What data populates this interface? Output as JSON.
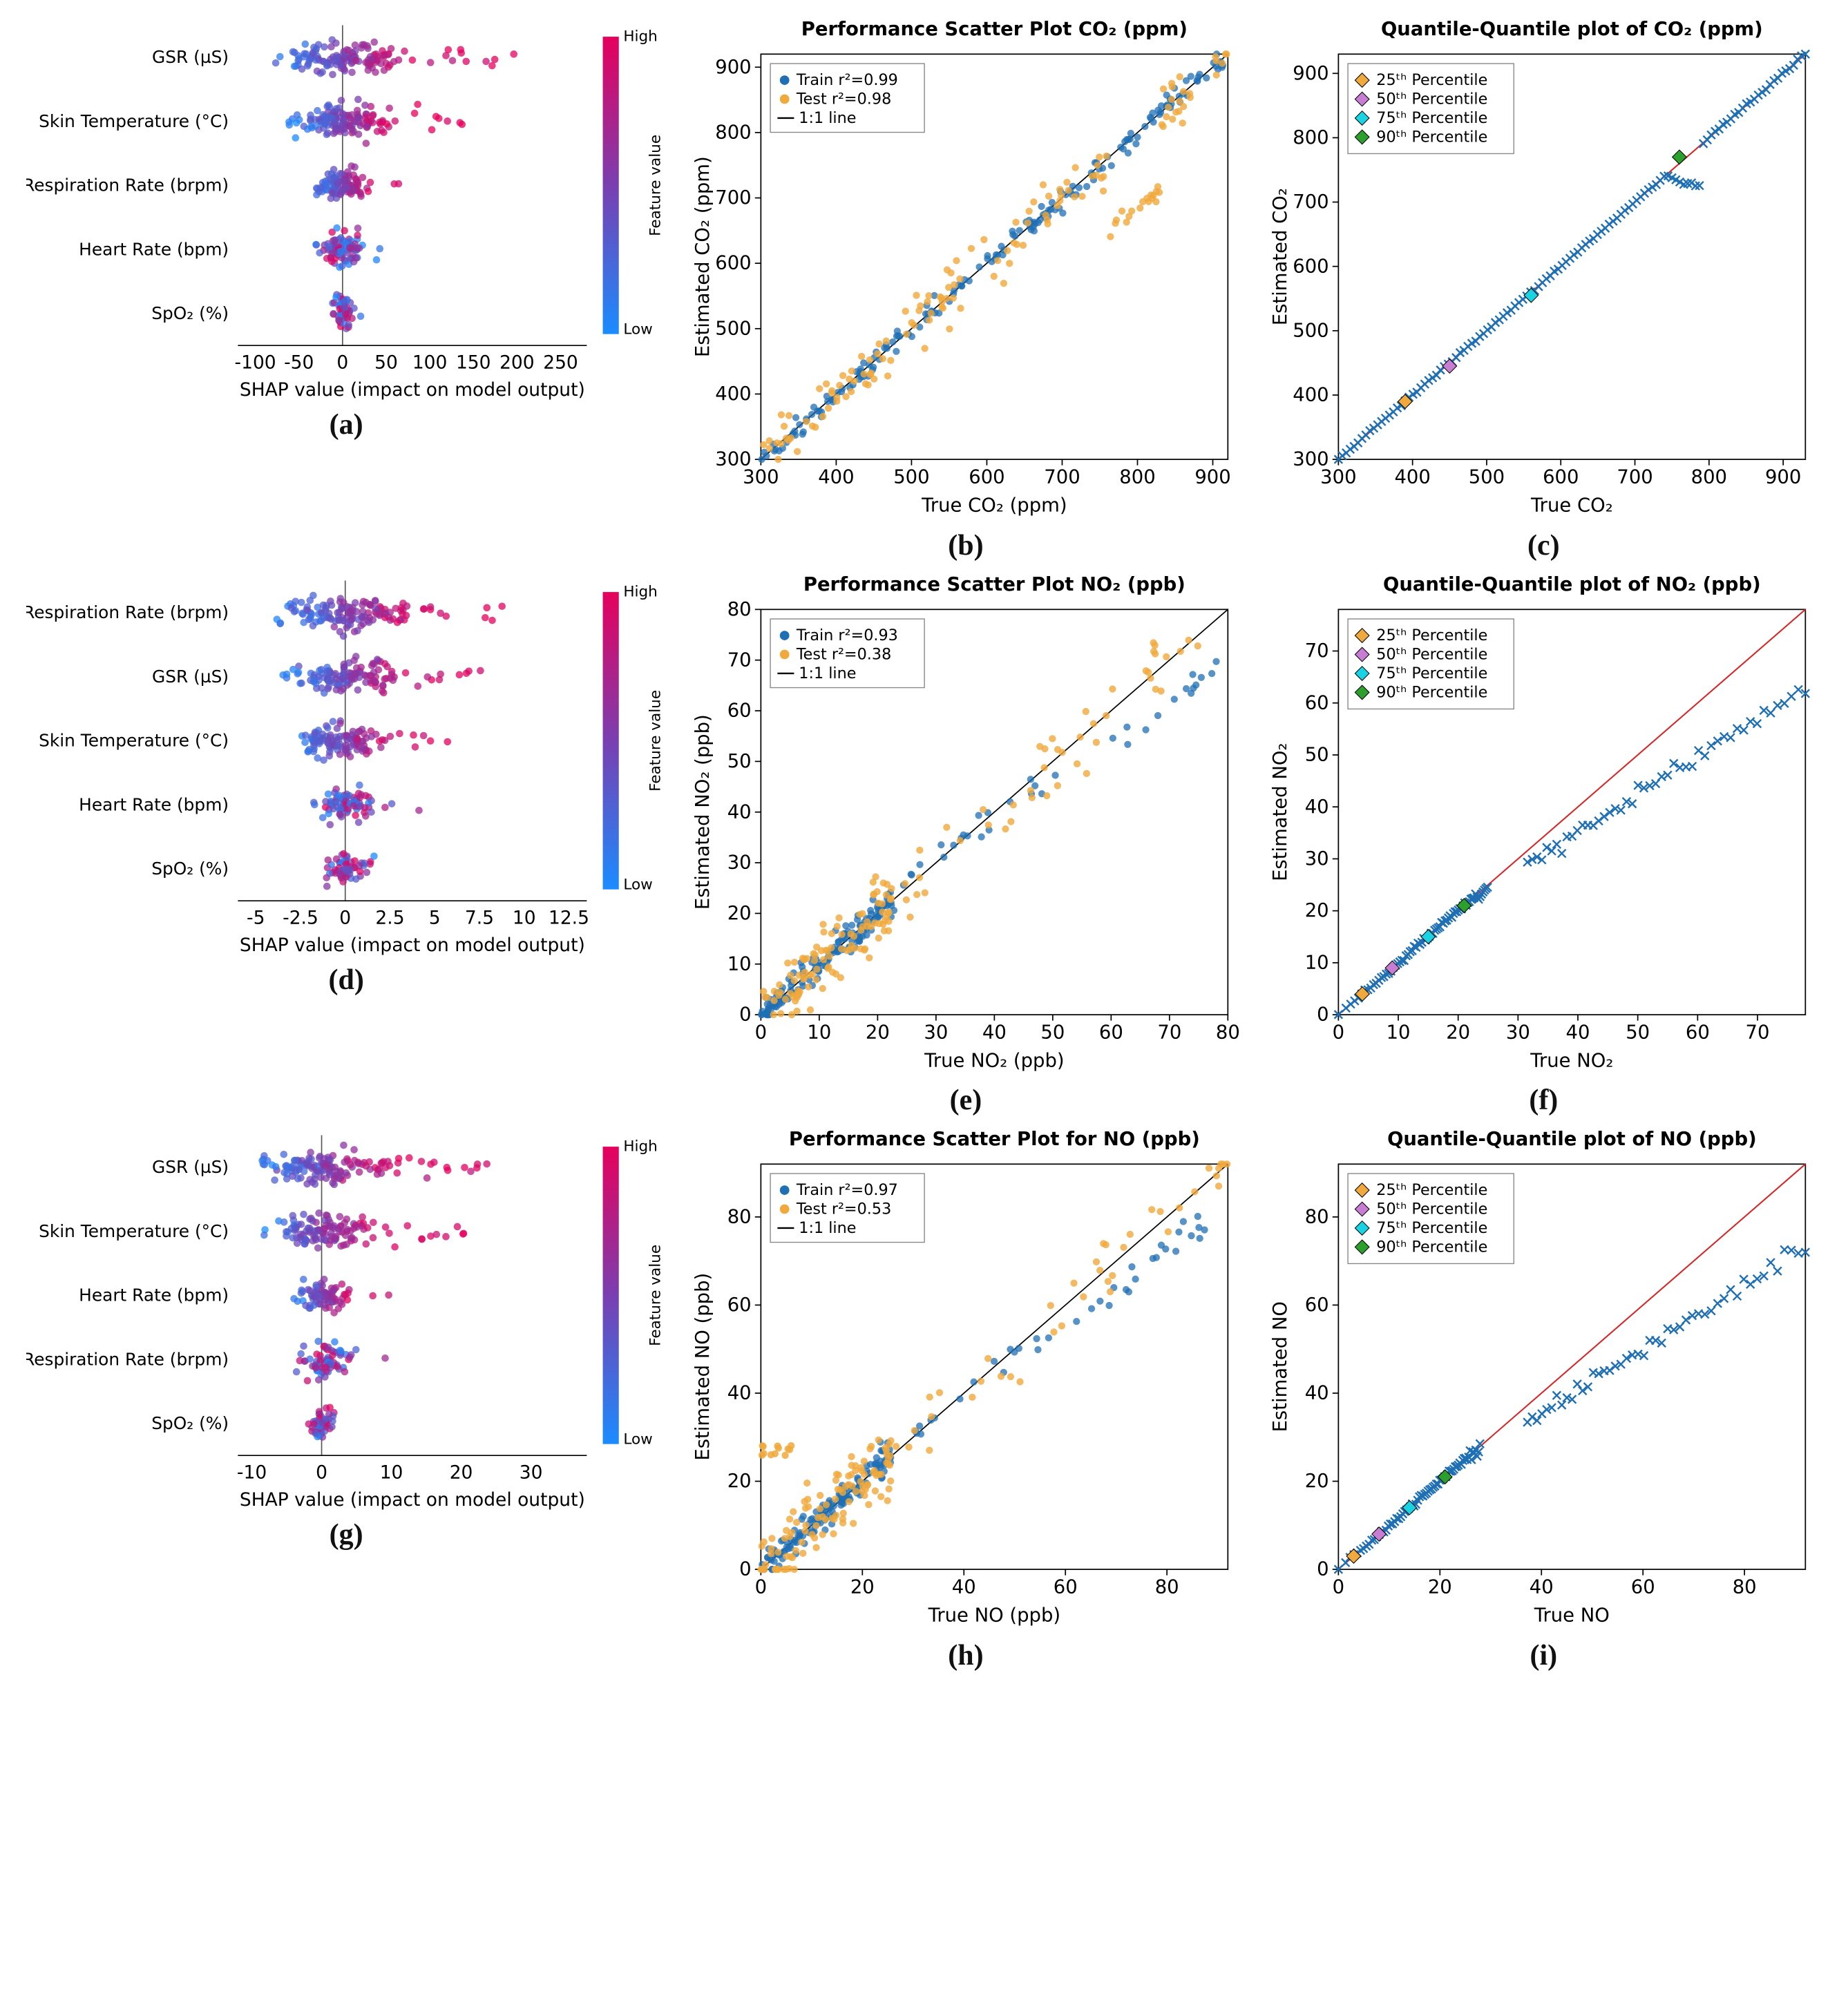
{
  "palette": {
    "shap_high": "#e6005c",
    "shap_mid": "#7a3fb0",
    "shap_low": "#1a8cff",
    "train": "#1f6fb4",
    "test": "#f0a93c",
    "oneone": "#000000",
    "refline": "#d62728",
    "qq_x": "#1f6fb4",
    "p25": "#f0a93c",
    "p50": "#c77dd1",
    "p75": "#19d3e3",
    "p90": "#2ca02c",
    "axis": "#000000",
    "grid": "#aaaaaa"
  },
  "fonts": {
    "title_fontsize": 16,
    "title_weight": "bold",
    "axis_label_fontsize": 16,
    "tick_fontsize": 14,
    "legend_fontsize": 13,
    "panel_label_fontsize": 42
  },
  "shap_common": {
    "xlabel": "SHAP value (impact on model output)",
    "colorbar_label": "Feature value",
    "colorbar_high": "High",
    "colorbar_low": "Low"
  },
  "rows": [
    {
      "letters": [
        "(a)",
        "(b)",
        "(c)"
      ],
      "shap": {
        "features": [
          "GSR (µS)",
          "Skin Temperature (°C)",
          "Respiration Rate (brpm)",
          "Heart Rate (bpm)",
          "SpO₂ (%)"
        ],
        "xlim": [
          -120,
          280
        ],
        "xticks": [
          -100,
          -50,
          0,
          50,
          100,
          150,
          200,
          250
        ],
        "spread": [
          1.0,
          0.7,
          0.4,
          0.35,
          0.18
        ],
        "density": [
          1.0,
          1.0,
          0.7,
          0.6,
          0.4
        ]
      },
      "scatter": {
        "title_prefix": "Performance Scatter Plot ",
        "gas": "CO₂",
        "unit": "(ppm)",
        "xlabel": "True CO₂ (ppm)",
        "ylabel": "Estimated CO₂ (ppm)",
        "xlim": [
          300,
          920
        ],
        "ylim": [
          300,
          920
        ],
        "xticks": [
          300,
          400,
          500,
          600,
          700,
          800,
          900
        ],
        "yticks": [
          300,
          400,
          500,
          600,
          700,
          800,
          900
        ],
        "legend": [
          "Train r²=0.99",
          "Test r²=0.98",
          "1:1 line"
        ],
        "noise_train": 18,
        "noise_test": 45,
        "test_dip": {
          "enabled": true,
          "start": 760,
          "end": 830,
          "drop": 120
        }
      },
      "qq": {
        "title_prefix": "Quantile-Quantile plot of ",
        "gas": "CO₂",
        "unit": "(ppm)",
        "xlabel": "True CO₂",
        "ylabel": "Estimated CO₂",
        "xlim": [
          300,
          930
        ],
        "ylim": [
          300,
          930
        ],
        "xticks": [
          300,
          400,
          500,
          600,
          700,
          800,
          900
        ],
        "yticks": [
          300,
          400,
          500,
          600,
          700,
          800,
          900
        ],
        "legend": [
          "25ᵗʰ Percentile",
          "50ᵗʰ Percentile",
          "75ᵗʰ Percentile",
          "90ᵗʰ Percentile"
        ],
        "percentiles": {
          "p25": [
            390,
            390
          ],
          "p50": [
            450,
            445
          ],
          "p75": [
            560,
            555
          ],
          "p90": [
            760,
            770
          ]
        },
        "marker": "x",
        "curve": "co2"
      }
    },
    {
      "letters": [
        "(d)",
        "(e)",
        "(f)"
      ],
      "shap": {
        "features": [
          "Respiration Rate (brpm)",
          "GSR (µS)",
          "Skin Temperature (°C)",
          "Heart Rate (bpm)",
          "SpO₂ (%)"
        ],
        "xlim": [
          -6,
          13.5
        ],
        "xticks": [
          -5.0,
          -2.5,
          0.0,
          2.5,
          5.0,
          7.5,
          10.0,
          12.5
        ],
        "spread": [
          1.0,
          0.85,
          0.75,
          0.45,
          0.35
        ],
        "density": [
          1.0,
          0.9,
          0.85,
          0.55,
          0.4
        ]
      },
      "scatter": {
        "title_prefix": "Performance Scatter Plot ",
        "gas": "NO₂",
        "unit": "(ppb)",
        "xlabel": "True NO₂ (ppb)",
        "ylabel": "Estimated NO₂ (ppb)",
        "xlim": [
          0,
          80
        ],
        "ylim": [
          0,
          80
        ],
        "xticks": [
          0,
          10,
          20,
          30,
          40,
          50,
          60,
          70,
          80
        ],
        "yticks": [
          0,
          10,
          20,
          30,
          40,
          50,
          60,
          70,
          80
        ],
        "legend": [
          "Train r²=0.93",
          "Test r²=0.38",
          "1:1 line"
        ],
        "noise_train": 3,
        "noise_test": 8,
        "concentration": "low",
        "train_tail": {
          "slope": 0.78,
          "start": 35
        }
      },
      "qq": {
        "title_prefix": "Quantile-Quantile plot of ",
        "gas": "NO₂",
        "unit": "(ppb)",
        "xlabel": "True NO₂",
        "ylabel": "Estimated NO₂",
        "xlim": [
          0,
          78
        ],
        "ylim": [
          0,
          78
        ],
        "xticks": [
          0,
          10,
          20,
          30,
          40,
          50,
          60,
          70
        ],
        "yticks": [
          0,
          10,
          20,
          30,
          40,
          50,
          60,
          70
        ],
        "legend": [
          "25ᵗʰ Percentile",
          "50ᵗʰ Percentile",
          "75ᵗʰ Percentile",
          "90ᵗʰ Percentile"
        ],
        "percentiles": {
          "p25": [
            4,
            4
          ],
          "p50": [
            9,
            9
          ],
          "p75": [
            15,
            15
          ],
          "p90": [
            21,
            21
          ]
        },
        "marker": "x",
        "curve": "no2"
      }
    },
    {
      "letters": [
        "(g)",
        "(h)",
        "(i)"
      ],
      "shap": {
        "features": [
          "GSR (µS)",
          "Skin Temperature (°C)",
          "Heart Rate (bpm)",
          "Respiration Rate (brpm)",
          "SpO₂ (%)"
        ],
        "xlim": [
          -12,
          38
        ],
        "xticks": [
          -10,
          0,
          10,
          20,
          30
        ],
        "spread": [
          1.0,
          0.85,
          0.45,
          0.4,
          0.2
        ],
        "density": [
          1.0,
          0.9,
          0.55,
          0.5,
          0.35
        ]
      },
      "scatter": {
        "title_prefix": "Performance Scatter Plot for ",
        "gas": "NO",
        "unit": "(ppb)",
        "xlabel": "True NO (ppb)",
        "ylabel": "Estimated NO (ppb)",
        "xlim": [
          0,
          92
        ],
        "ylim": [
          0,
          92
        ],
        "xticks": [
          0,
          20,
          40,
          60,
          80
        ],
        "yticks": [
          0,
          20,
          40,
          60,
          80
        ],
        "legend": [
          "Train r²=0.97",
          "Test r²=0.53",
          "1:1 line"
        ],
        "noise_train": 3.5,
        "noise_test": 9,
        "concentration": "low",
        "train_tail": {
          "slope": 0.82,
          "start": 40
        },
        "test_flat_cluster": {
          "y": 27,
          "x0": 0,
          "x1": 6,
          "n": 12
        }
      },
      "qq": {
        "title_prefix": "Quantile-Quantile plot of ",
        "gas": "NO",
        "unit": "(ppb)",
        "xlabel": "True NO",
        "ylabel": "Estimated NO",
        "xlim": [
          0,
          92
        ],
        "ylim": [
          0,
          92
        ],
        "xticks": [
          0,
          20,
          40,
          60,
          80
        ],
        "yticks": [
          0,
          20,
          40,
          60,
          80
        ],
        "legend": [
          "25ᵗʰ Percentile",
          "50ᵗʰ Percentile",
          "75ᵗʰ Percentile",
          "90ᵗʰ Percentile"
        ],
        "percentiles": {
          "p25": [
            3,
            3
          ],
          "p50": [
            8,
            8
          ],
          "p75": [
            14,
            14
          ],
          "p90": [
            21,
            21
          ]
        },
        "marker": "x",
        "curve": "no"
      }
    }
  ]
}
